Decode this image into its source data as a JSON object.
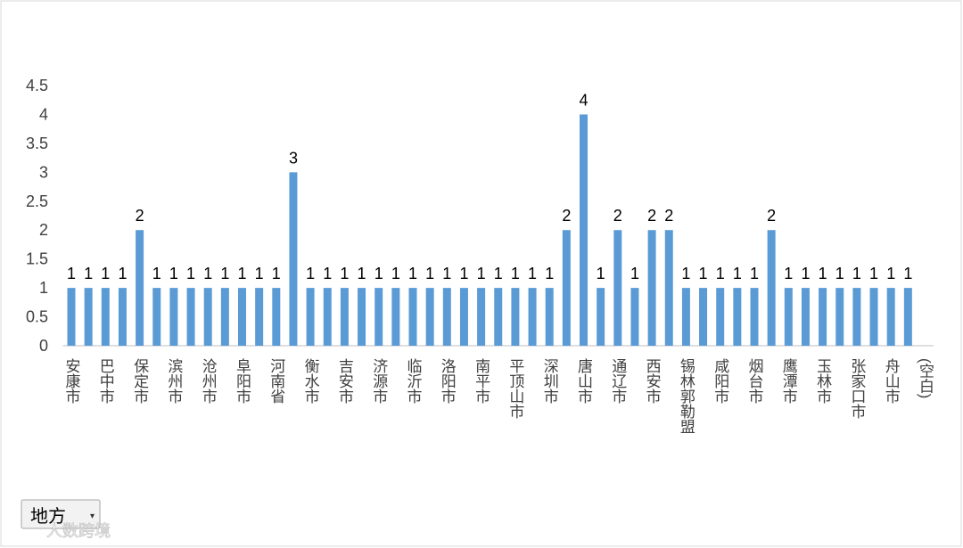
{
  "chart_data": {
    "type": "bar",
    "categories": [
      "安康市",
      null,
      "巴中市",
      null,
      "保定市",
      null,
      "滨州市",
      null,
      "沧州市",
      null,
      "阜阳市",
      null,
      "河南省",
      null,
      "衡水市",
      null,
      "吉安市",
      null,
      "济源市",
      null,
      "临沂市",
      null,
      "洛阳市",
      null,
      "南平市",
      null,
      "平顶山市",
      null,
      "深圳市",
      null,
      "唐山市",
      null,
      "通辽市",
      null,
      "西安市",
      null,
      "锡林郭勒盟",
      null,
      "咸阳市",
      null,
      "烟台市",
      null,
      "鹰潭市",
      null,
      "玉林市",
      null,
      "张家口市",
      null,
      "舟山市",
      null,
      "(空白)"
    ],
    "values": [
      1,
      1,
      1,
      1,
      2,
      1,
      1,
      1,
      1,
      1,
      1,
      1,
      1,
      3,
      1,
      1,
      1,
      1,
      1,
      1,
      1,
      1,
      1,
      1,
      1,
      1,
      1,
      1,
      1,
      2,
      4,
      1,
      2,
      1,
      2,
      2,
      1,
      1,
      1,
      1,
      1,
      2,
      1,
      1,
      1,
      1,
      1,
      1,
      1,
      1,
      null
    ],
    "color": "#5b9bd5",
    "ylim": [
      0,
      4.5
    ],
    "yticks": [
      0,
      0.5,
      1,
      1.5,
      2,
      2.5,
      3,
      3.5,
      4,
      4.5
    ],
    "grid": false,
    "field_button": "地方",
    "watermark": "人数跨境"
  }
}
